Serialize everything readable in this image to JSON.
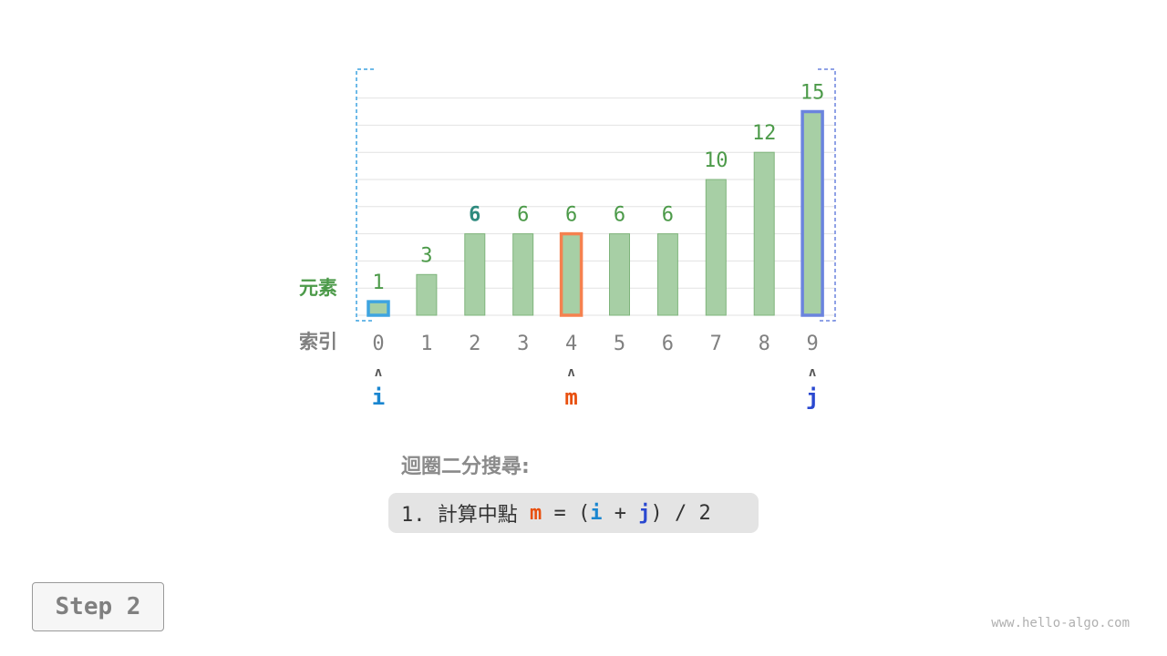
{
  "diagram": {
    "values": [
      1,
      3,
      6,
      6,
      6,
      6,
      6,
      10,
      12,
      15
    ],
    "indices": [
      "0",
      "1",
      "2",
      "3",
      "4",
      "5",
      "6",
      "7",
      "8",
      "9"
    ],
    "value_labels": [
      "1",
      "3",
      "6",
      "6",
      "6",
      "6",
      "6",
      "10",
      "12",
      "15"
    ],
    "row_label_elements": "元素",
    "row_label_index": "索引",
    "pointers": [
      {
        "label": "i",
        "index": 0,
        "color": "#1a86d0"
      },
      {
        "label": "m",
        "index": 4,
        "color": "#e8500f"
      },
      {
        "label": "j",
        "index": 9,
        "color": "#2a48d0"
      }
    ],
    "highlight_value_index": 2,
    "colors": {
      "bar_fill": "#a7cfa5",
      "bar_stroke": "#7fb47c",
      "value_text": "#4c9a49",
      "highlight_value_text": "#2e8a7e",
      "index_text": "#808080",
      "i_box": "#3ea4e0",
      "m_box": "#f5814f",
      "j_box": "#6b84de",
      "grid": "#e2e2e2"
    },
    "arrow_glyph": "ʌ"
  },
  "algorithm": {
    "title": "迴圈二分搜尋:",
    "step_prefix": "1. 計算中點 ",
    "m": "m",
    "eq": " = (",
    "i": "i",
    "plus": " + ",
    "j": "j",
    "suffix": ") / 2"
  },
  "step_button": "Step 2",
  "watermark": "www.hello-algo.com"
}
